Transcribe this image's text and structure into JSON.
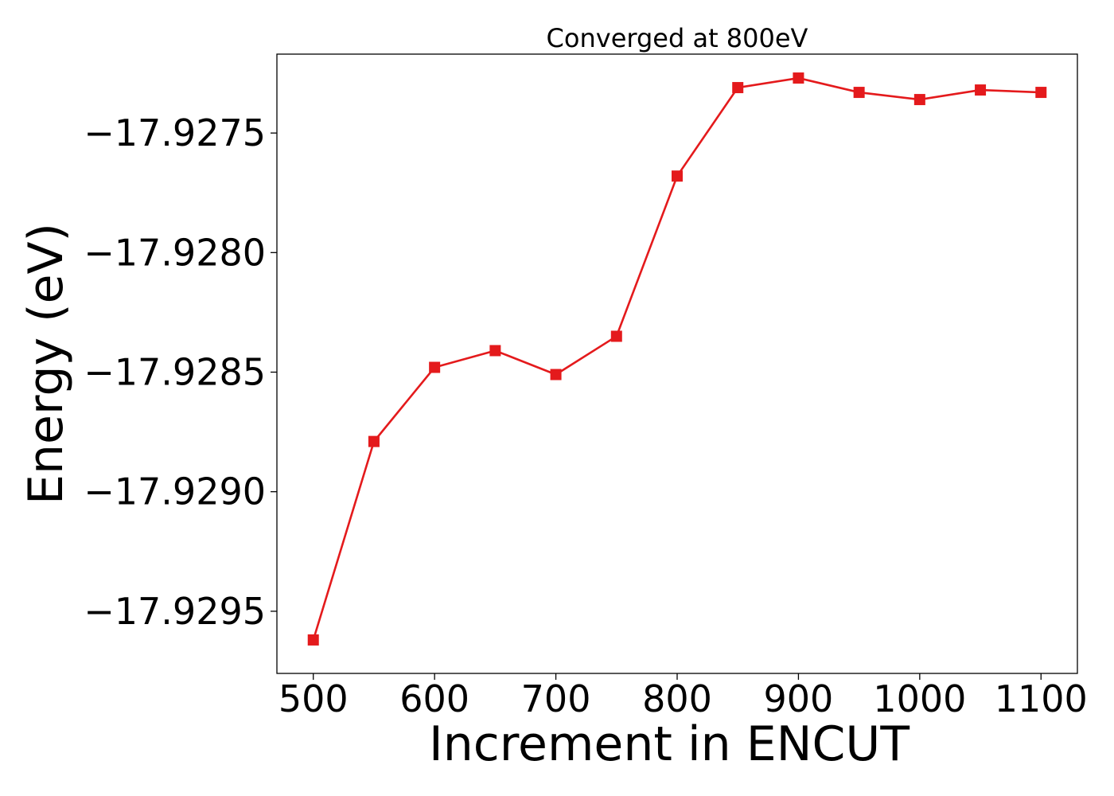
{
  "chart_data": {
    "type": "line",
    "title": "Converged at 800eV",
    "xlabel": "Increment in ENCUT",
    "ylabel": "Energy (eV)",
    "xlim": [
      470,
      1130
    ],
    "ylim": [
      -17.92976,
      -17.92717
    ],
    "x_ticks": [
      500,
      600,
      700,
      800,
      900,
      1000,
      1100
    ],
    "y_ticks": [
      -17.9295,
      -17.929,
      -17.9285,
      -17.928,
      -17.9275
    ],
    "y_tick_labels": [
      "−17.9295",
      "−17.9290",
      "−17.9285",
      "−17.9280",
      "−17.9275"
    ],
    "grid": false,
    "series": [
      {
        "color": "#e41a1c",
        "marker": "square",
        "x": [
          500,
          550,
          600,
          650,
          700,
          750,
          800,
          850,
          900,
          950,
          1000,
          1050,
          1100
        ],
        "values": [
          -17.92962,
          -17.92879,
          -17.92848,
          -17.92841,
          -17.92851,
          -17.92835,
          -17.92768,
          -17.92731,
          -17.92727,
          -17.92733,
          -17.92736,
          -17.92732,
          -17.92733
        ]
      }
    ]
  }
}
